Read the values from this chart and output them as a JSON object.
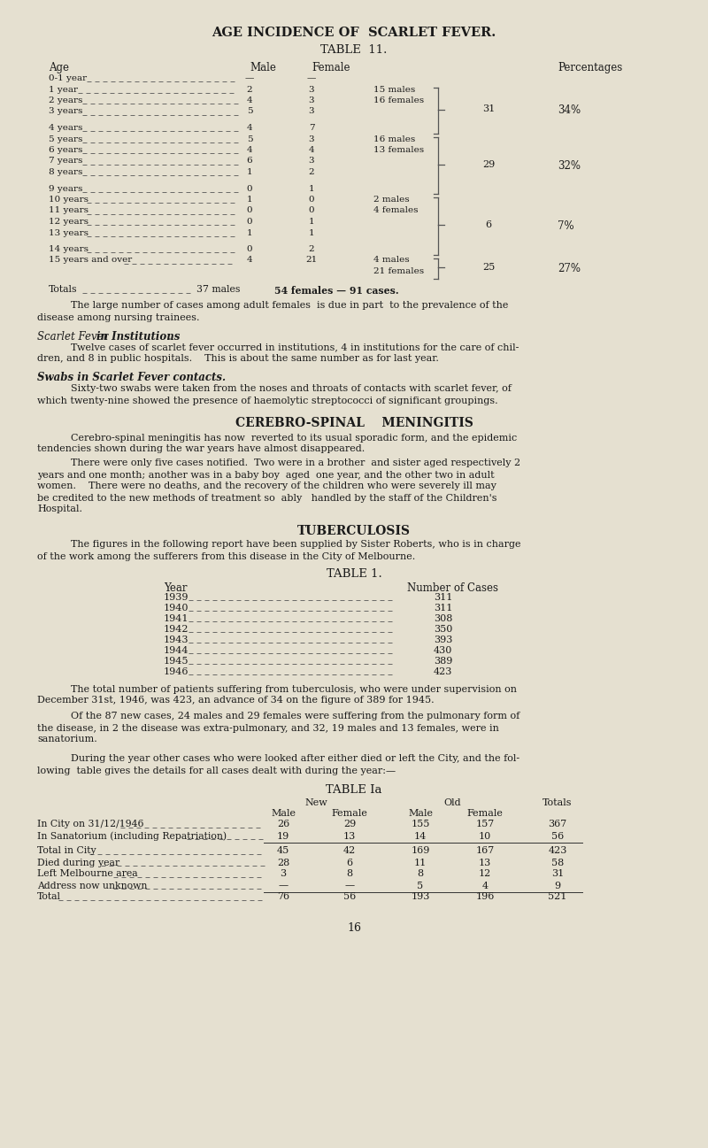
{
  "bg_color": "#e5e0d0",
  "title1": "AGE INCIDENCE OF  SCARLET FEVER.",
  "title2": "TABLE  11.",
  "table1_title": "TABLE 1.",
  "tableia_title": "TABLE Ia",
  "table1_rows": [
    [
      "1939",
      "311"
    ],
    [
      "1940",
      "311"
    ],
    [
      "1941",
      "308"
    ],
    [
      "1942",
      "350"
    ],
    [
      "1943",
      "393"
    ],
    [
      "1944",
      "430"
    ],
    [
      "1945",
      "389"
    ],
    [
      "1946",
      "423"
    ]
  ],
  "tableia_rows": [
    [
      "In City on 31/12/1946",
      "26",
      "29",
      "155",
      "157",
      "367"
    ],
    [
      "In Sanatorium (including Repatriation)",
      "19",
      "13",
      "14",
      "10",
      "56"
    ]
  ],
  "tableia_rows2": [
    [
      "Total in City",
      "45",
      "42",
      "169",
      "167",
      "423"
    ],
    [
      "Died during year",
      "28",
      "6",
      "11",
      "13",
      "58"
    ],
    [
      "Left Melbourne area",
      "3",
      "8",
      "8",
      "12",
      "31"
    ],
    [
      "Address now unknown",
      "—",
      "—",
      "5",
      "4",
      "9"
    ],
    [
      "Total",
      "76",
      "56",
      "193",
      "196",
      "521"
    ]
  ],
  "page_num": "16",
  "sf_rows": [
    [
      "0-1 year",
      "—",
      "—"
    ],
    [
      "1 year",
      "2",
      "3"
    ],
    [
      "2 years",
      "4",
      "3"
    ],
    [
      "3 years",
      "5",
      "3"
    ],
    [
      "4 years",
      "4",
      "7"
    ],
    [
      "5 years",
      "5",
      "3"
    ],
    [
      "6 years",
      "4",
      "4"
    ],
    [
      "7 years",
      "6",
      "3"
    ],
    [
      "8 years",
      "1",
      "2"
    ],
    [
      "9 years",
      "0",
      "1"
    ],
    [
      "10 years",
      "1",
      "0"
    ],
    [
      "11 years",
      "0",
      "0"
    ],
    [
      "12 years",
      "0",
      "1"
    ],
    [
      "13 years",
      "1",
      "1"
    ],
    [
      "14 years",
      "0",
      "2"
    ],
    [
      "15 years and over",
      "4",
      "21"
    ]
  ]
}
